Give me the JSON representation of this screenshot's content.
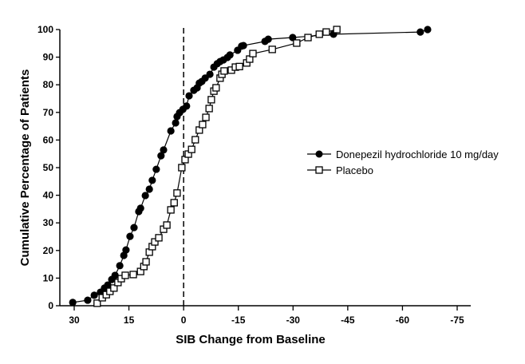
{
  "chart_data": {
    "type": "line",
    "title": "",
    "xlabel": "SIB Change from Baseline",
    "ylabel": "Cumulative Percentage of Patients",
    "xlim": [
      30,
      -75
    ],
    "ylim": [
      0,
      100
    ],
    "x_ticks": [
      30,
      15,
      0,
      -15,
      -30,
      -45,
      -60,
      -75
    ],
    "x_tick_labels": [
      "30",
      "15",
      "0",
      "-15",
      "-30",
      "-45",
      "-60",
      "-75"
    ],
    "y_ticks": [
      0,
      10,
      20,
      30,
      40,
      50,
      60,
      70,
      80,
      90,
      100
    ],
    "y_tick_labels": [
      "0",
      "10",
      "20",
      "30",
      "40",
      "50",
      "60",
      "70",
      "80",
      "90",
      "100"
    ],
    "reference_line_x": 0,
    "grid": false,
    "legend_position": "right",
    "series": [
      {
        "name": "Donepezil hydrochloride 10 mg/day",
        "marker": "filled-circle",
        "x": [
          30.4,
          26.3,
          24.5,
          22.8,
          21.7,
          20.8,
          19.7,
          18.8,
          17.5,
          16.4,
          15.8,
          14.7,
          13.6,
          12.3,
          11.8,
          10.5,
          9.4,
          8.6,
          7.5,
          6.2,
          5.5,
          3.5,
          2.2,
          1.8,
          1.1,
          0.2,
          -0.8,
          -1.5,
          -2.8,
          -3.7,
          -4.3,
          -5.0,
          -5.9,
          -7.2,
          -8.3,
          -9.2,
          -10.0,
          -10.9,
          -12.0,
          -12.7,
          -14.8,
          -15.9,
          -16.4,
          -22.3,
          -23.2,
          -29.9,
          -41.1,
          -64.9,
          -66.9
        ],
        "y": [
          1.2,
          2.0,
          3.8,
          4.9,
          6.4,
          7.5,
          9.5,
          11.0,
          14.5,
          18.2,
          20.2,
          25.1,
          28.3,
          34.1,
          35.3,
          39.9,
          42.2,
          45.4,
          49.4,
          54.3,
          56.4,
          63.3,
          66.2,
          68.5,
          69.9,
          71.1,
          72.3,
          76.0,
          78.0,
          78.9,
          80.6,
          81.2,
          82.4,
          83.8,
          86.4,
          87.6,
          88.4,
          89.0,
          89.9,
          90.8,
          92.5,
          94.0,
          94.2,
          95.7,
          96.5,
          97.1,
          98.3,
          99.1,
          100
        ]
      },
      {
        "name": "Placebo",
        "marker": "open-square",
        "x": [
          23.7,
          22.3,
          21.2,
          20.2,
          19.1,
          18.0,
          17.1,
          16.0,
          13.8,
          11.8,
          10.9,
          10.3,
          9.4,
          8.6,
          7.9,
          6.8,
          5.5,
          4.6,
          3.5,
          2.6,
          1.8,
          0.5,
          -0.4,
          -1.3,
          -2.2,
          -3.2,
          -4.3,
          -5.2,
          -6.1,
          -7.0,
          -7.6,
          -8.3,
          -8.9,
          -10.0,
          -10.5,
          -11.1,
          -13.1,
          -14.2,
          -15.3,
          -17.3,
          -18.1,
          -19.0,
          -24.3,
          -31.0,
          -34.1,
          -37.2,
          -39.1,
          -42.0
        ],
        "y": [
          0.9,
          2.9,
          4.0,
          5.2,
          6.4,
          8.4,
          9.8,
          11.0,
          11.3,
          12.4,
          14.2,
          15.9,
          19.4,
          21.4,
          23.1,
          24.6,
          27.7,
          29.2,
          34.7,
          37.3,
          40.8,
          50.0,
          52.9,
          54.9,
          56.6,
          60.1,
          63.6,
          65.6,
          68.2,
          71.4,
          74.6,
          77.7,
          78.9,
          82.4,
          83.8,
          85.0,
          85.3,
          86.4,
          86.6,
          87.9,
          89.3,
          91.3,
          92.8,
          95.1,
          97.1,
          98.3,
          99.1,
          100
        ]
      }
    ]
  }
}
